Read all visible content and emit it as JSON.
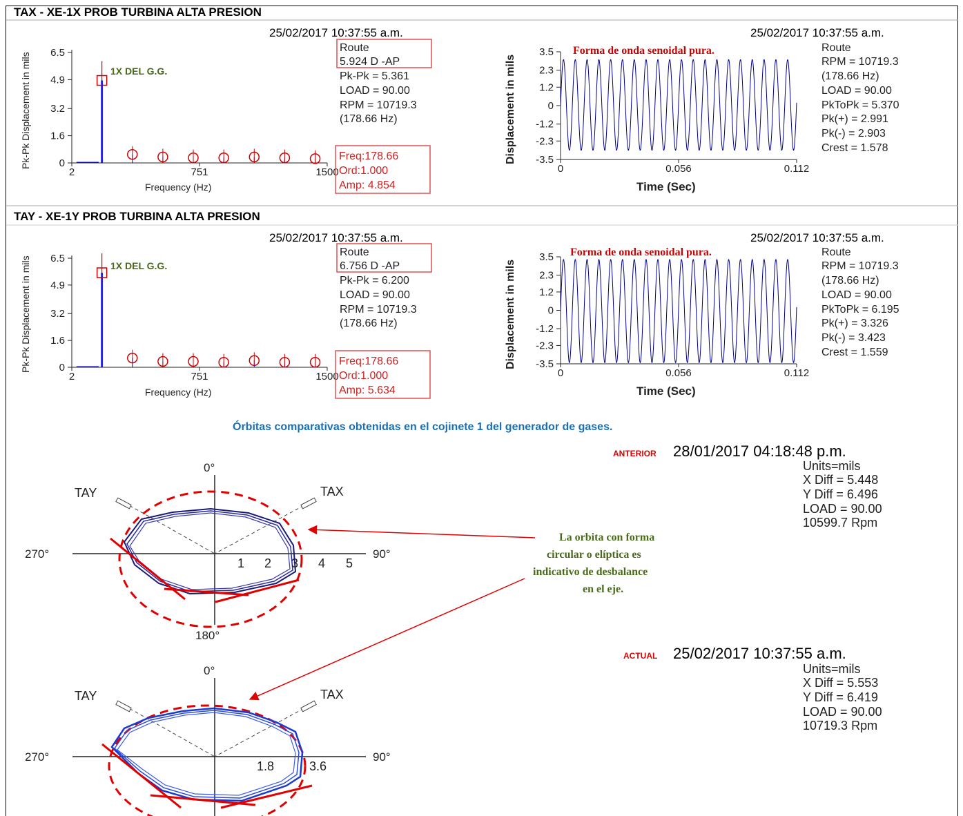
{
  "sections": [
    {
      "title": "TAX - XE-1X PROB TURBINA ALTA PRESION",
      "timestamp_left": "25/02/2017 10:37:55 a.m.",
      "timestamp_right": "25/02/2017 10:37:55 a.m.",
      "spectrum_info": [
        "Route",
        "5.924 D -AP",
        "Pk-Pk = 5.361",
        "LOAD = 90.00",
        "RPM = 10719.3",
        "(178.66 Hz)"
      ],
      "cursor_info": [
        "Freq:178.66",
        "Ord:1.000",
        "Amp: 4.854"
      ],
      "peak_label": "1X DEL G.G.",
      "wave_note": "Forma de onda senoidal pura.",
      "wave_info": [
        "Route",
        "RPM = 10719.3",
        "(178.66 Hz)",
        "LOAD = 90.00",
        "PkToPk = 5.370",
        "Pk(+) = 2.991",
        "Pk(-) = 2.903",
        "Crest = 1.578"
      ]
    },
    {
      "title": "TAY - XE-1Y PROB TURBINA ALTA PRESION",
      "timestamp_left": "25/02/2017 10:37:55 a.m.",
      "timestamp_right": "25/02/2017 10:37:55 a.m.",
      "spectrum_info": [
        "Route",
        "6.756 D -AP",
        "Pk-Pk = 6.200",
        "LOAD = 90.00",
        "RPM = 10719.3",
        "(178.66 Hz)"
      ],
      "cursor_info": [
        "Freq:178.66",
        "Ord:1.000",
        "Amp: 5.634"
      ],
      "peak_label": "1X DEL G.G.",
      "wave_note": "Forma de onda senoidal pura.",
      "wave_info": [
        "Route",
        "RPM = 10719.3",
        "(178.66 Hz)",
        "LOAD = 90.00",
        "PkToPk = 6.195",
        "Pk(+) = 3.326",
        "Pk(-) = 3.423",
        "Crest = 1.559"
      ]
    }
  ],
  "orbits_caption": "Órbitas comparativas obtenidas en el cojinete 1 del generador de gases.",
  "orbits": [
    {
      "tag": "ANTERIOR",
      "timestamp": "28/01/2017 04:18:48 p.m.",
      "info": [
        "Units=mils",
        "X Diff = 5.448",
        "Y Diff = 6.496",
        "LOAD = 90.00",
        "10599.7 Rpm"
      ],
      "ticks": [
        "1",
        "2",
        "3",
        "4",
        "5"
      ],
      "angle_top": "0°",
      "angle_right": "90°",
      "angle_bottom": "180°",
      "angle_left": "270°",
      "probe_left": "TAY",
      "probe_right": "TAX"
    },
    {
      "tag": "ACTUAL",
      "timestamp": "25/02/2017 10:37:55 a.m.",
      "info": [
        "Units=mils",
        "X Diff = 5.553",
        "Y Diff = 6.419",
        "LOAD = 90.00",
        "10719.3 Rpm"
      ],
      "ticks": [
        "1.8",
        "3.6"
      ],
      "angle_top": "0°",
      "angle_right": "90°",
      "angle_left": "270°",
      "probe_left": "TAY",
      "probe_right": "TAX"
    }
  ],
  "annotation": [
    "La orbita con forma",
    "circular o elíptica es",
    "indicativo de desbalance",
    "en el eje."
  ],
  "chart_data": [
    {
      "type": "bar",
      "title": "TAX - XE-1X PROB TURBINA ALTA PRESION",
      "xlabel": "Frequency (Hz)",
      "ylabel": "Pk-Pk Displacement in mils",
      "xlim": [
        2,
        1500
      ],
      "ylim": [
        0,
        6.5
      ],
      "x_ticks": [
        "2",
        "751",
        "1500"
      ],
      "y_ticks": [
        "0",
        "1.6",
        "3.2",
        "4.9",
        "6.5"
      ],
      "x": [
        178.66,
        357.3,
        536.0,
        714.6,
        893.3,
        1072.0,
        1250.6,
        1429.3
      ],
      "values": [
        4.854,
        0.5,
        0.35,
        0.3,
        0.3,
        0.35,
        0.3,
        0.25
      ],
      "color": "#0000ff",
      "marker_color": "#cc0000"
    },
    {
      "type": "line",
      "title": "TAX - XE-1X PROB TURBINA ALTA PRESION",
      "xlabel": "Time (Sec)",
      "ylabel": "Displacement in mils",
      "xlim": [
        0,
        0.112
      ],
      "ylim": [
        -3.5,
        3.5
      ],
      "x_ticks": [
        "0",
        "0.056",
        "0.112"
      ],
      "y_ticks": [
        "3.5",
        "2.3",
        "1.2",
        "0",
        "-1.2",
        "-2.3",
        "-3.5"
      ],
      "frequency_hz": 178.66,
      "pk_pos": 2.991,
      "pk_neg": 2.903,
      "color": "#00008b"
    },
    {
      "type": "bar",
      "title": "TAY - XE-1Y PROB TURBINA ALTA PRESION",
      "xlabel": "Frequency (Hz)",
      "ylabel": "Pk-Pk Displacement in mils",
      "xlim": [
        2,
        1500
      ],
      "ylim": [
        0,
        6.5
      ],
      "x_ticks": [
        "2",
        "751",
        "1500"
      ],
      "y_ticks": [
        "0",
        "1.6",
        "3.2",
        "4.9",
        "6.5"
      ],
      "x": [
        178.66,
        357.3,
        536.0,
        714.6,
        893.3,
        1072.0,
        1250.6,
        1429.3
      ],
      "values": [
        5.634,
        0.55,
        0.35,
        0.35,
        0.3,
        0.4,
        0.3,
        0.3
      ],
      "color": "#0000ff",
      "marker_color": "#cc0000"
    },
    {
      "type": "line",
      "title": "TAY - XE-1Y PROB TURBINA ALTA PRESION",
      "xlabel": "Time (Sec)",
      "ylabel": "Displacement in mils",
      "xlim": [
        0,
        0.112
      ],
      "ylim": [
        -3.5,
        3.5
      ],
      "x_ticks": [
        "0",
        "0.056",
        "0.112"
      ],
      "y_ticks": [
        "3.5",
        "2.3",
        "1.2",
        "0",
        "-1.2",
        "-2.3",
        "-3.5"
      ],
      "frequency_hz": 178.66,
      "pk_pos": 3.326,
      "pk_neg": 3.423,
      "color": "#00008b"
    }
  ]
}
